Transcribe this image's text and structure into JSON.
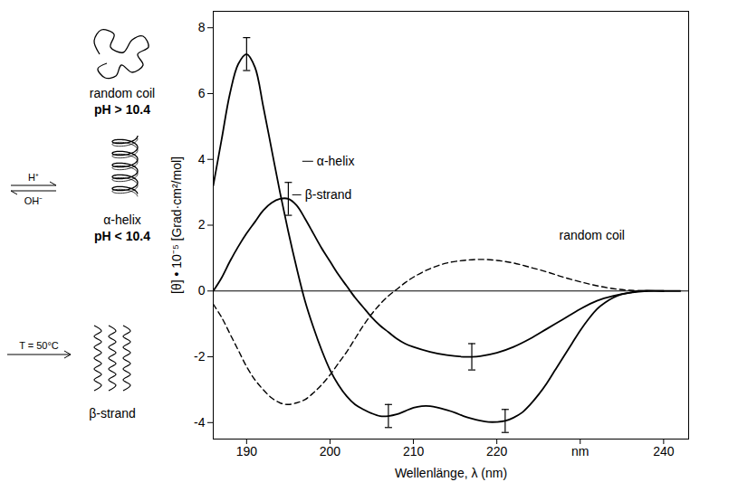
{
  "chart_data": {
    "type": "line",
    "x_label": "Wellenlänge, λ (nm)",
    "y_label": "[θ] • 10⁻⁵ [Grad·cm²/mol]",
    "xlim": [
      186,
      243
    ],
    "ylim": [
      -4.5,
      8.5
    ],
    "xticks": [
      190,
      200,
      210,
      220,
      {
        "value": 230,
        "label": "nm"
      },
      240
    ],
    "yticks": [
      -4,
      -2,
      0,
      2,
      4,
      6,
      8
    ],
    "grid": false,
    "series": [
      {
        "name": "α-helix",
        "color": "#000000",
        "line_style": "solid",
        "x": [
          186,
          187,
          188,
          189,
          190,
          191,
          192,
          193,
          194,
          195,
          196,
          197,
          198,
          199,
          200,
          201,
          202,
          203,
          204,
          205,
          206,
          207,
          208,
          209,
          210,
          211,
          212,
          213,
          214,
          215,
          216,
          217,
          218,
          219,
          220,
          221,
          222,
          223,
          224,
          225,
          226,
          227,
          228,
          229,
          230,
          231,
          232,
          233,
          234,
          235,
          236,
          237,
          240,
          242
        ],
        "values": [
          3.2,
          4.6,
          6.0,
          6.9,
          7.2,
          6.8,
          5.6,
          4.3,
          3.0,
          1.8,
          0.7,
          -0.3,
          -1.1,
          -1.8,
          -2.4,
          -2.85,
          -3.2,
          -3.45,
          -3.6,
          -3.72,
          -3.8,
          -3.8,
          -3.75,
          -3.65,
          -3.55,
          -3.5,
          -3.5,
          -3.55,
          -3.62,
          -3.7,
          -3.8,
          -3.88,
          -3.94,
          -3.98,
          -3.98,
          -3.95,
          -3.85,
          -3.7,
          -3.45,
          -3.15,
          -2.8,
          -2.4,
          -2.0,
          -1.6,
          -1.2,
          -0.85,
          -0.55,
          -0.35,
          -0.2,
          -0.1,
          -0.05,
          0,
          0,
          0
        ],
        "error_bars": [
          {
            "x": 190,
            "error": 0.5
          },
          {
            "x": 207,
            "error": 0.35
          },
          {
            "x": 221,
            "error": 0.35
          }
        ]
      },
      {
        "name": "β-strand",
        "color": "#000000",
        "line_style": "solid",
        "x": [
          186,
          187,
          188,
          189,
          190,
          191,
          192,
          193,
          194,
          195,
          196,
          197,
          198,
          199,
          200,
          201,
          202,
          203,
          204,
          205,
          206,
          207,
          208,
          209,
          210,
          212,
          214,
          216,
          217,
          218,
          220,
          222,
          224,
          226,
          228,
          230,
          232,
          234,
          236,
          238,
          240
        ],
        "values": [
          0,
          0.4,
          0.9,
          1.35,
          1.75,
          2.1,
          2.45,
          2.68,
          2.8,
          2.8,
          2.6,
          2.2,
          1.75,
          1.3,
          0.9,
          0.5,
          0.15,
          -0.2,
          -0.5,
          -0.8,
          -1.05,
          -1.25,
          -1.45,
          -1.6,
          -1.7,
          -1.85,
          -1.95,
          -2.0,
          -2.0,
          -1.98,
          -1.88,
          -1.7,
          -1.45,
          -1.15,
          -0.85,
          -0.55,
          -0.3,
          -0.15,
          -0.05,
          0,
          0
        ],
        "error_bars": [
          {
            "x": 195,
            "error": 0.5
          },
          {
            "x": 217,
            "error": 0.4
          }
        ]
      },
      {
        "name": "random coil",
        "color": "#000000",
        "line_style": "dashed",
        "x": [
          186,
          187,
          188,
          189,
          190,
          191,
          192,
          193,
          194,
          195,
          196,
          197,
          198,
          199,
          200,
          201,
          202,
          203,
          204,
          205,
          206,
          207,
          208,
          209,
          210,
          212,
          214,
          216,
          218,
          220,
          222,
          224,
          226,
          228,
          230,
          232,
          234,
          236,
          238
        ],
        "values": [
          -0.4,
          -0.8,
          -1.3,
          -1.8,
          -2.3,
          -2.7,
          -3.0,
          -3.25,
          -3.4,
          -3.45,
          -3.4,
          -3.3,
          -3.1,
          -2.85,
          -2.55,
          -2.2,
          -1.85,
          -1.45,
          -1.05,
          -0.7,
          -0.4,
          -0.15,
          0.05,
          0.25,
          0.42,
          0.68,
          0.85,
          0.93,
          0.96,
          0.93,
          0.85,
          0.72,
          0.58,
          0.42,
          0.28,
          0.16,
          0.07,
          0.02,
          0
        ]
      }
    ]
  },
  "diagram": {
    "states": [
      {
        "label": "random coil",
        "condition": "pH > 10.4"
      },
      {
        "label": "α-helix",
        "condition": "pH < 10.4"
      },
      {
        "label": "β-strand"
      }
    ],
    "transitions": [
      {
        "above": "H⁺",
        "below": "OH⁻"
      },
      {
        "above": "T = 50°C"
      }
    ]
  }
}
